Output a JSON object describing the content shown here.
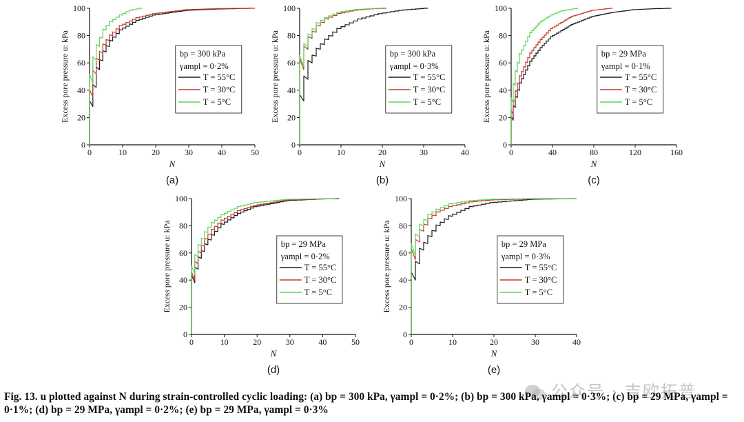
{
  "colors": {
    "T55": "#1a1a1a",
    "T30": "#c0392b",
    "T5": "#5fd35a"
  },
  "caption": {
    "fig_label": "Fig. 13.",
    "text": "u plotted against N during strain-controlled cyclic loading: (a) bp = 300 kPa, γampl = 0·2%; (b) bp = 300 kPa, γampl = 0·3%; (c) bp = 29 MPa, γampl = 0·1%; (d) bp = 29 MPa, γampl = 0·2%; (e) bp = 29 MPa, γampl = 0·3%"
  },
  "watermark": {
    "text": "公众号 · 吉欧拓普",
    "logo_icon": "wechat-logo-icon"
  },
  "chart_data": [
    {
      "id": "a",
      "panel_label": "(a)",
      "type": "line",
      "xlabel": "N",
      "ylabel": "Excess pore pressure u: kPa",
      "xlim": [
        0,
        50
      ],
      "ylim": [
        0,
        100
      ],
      "xticks": [
        "0",
        "10",
        "20",
        "30",
        "40",
        "50"
      ],
      "yticks": [
        "0",
        "20",
        "40",
        "60",
        "80",
        "100"
      ],
      "legend": {
        "bp": "bp = 300 kPa",
        "gamma": "γampl = 0·2%",
        "position": "right"
      },
      "series": [
        {
          "name": "T = 55°C",
          "color_key": "T55",
          "nmax": 49,
          "x": [
            0,
            1,
            2,
            3,
            5,
            7,
            10,
            15,
            20,
            30,
            40,
            49
          ],
          "y": [
            0,
            28,
            42,
            55,
            68,
            76,
            84,
            91,
            95,
            98.5,
            99.5,
            100
          ]
        },
        {
          "name": "T = 30°C",
          "color_key": "T30",
          "nmax": 50,
          "x": [
            0,
            1,
            2,
            3,
            5,
            7,
            10,
            15,
            20,
            30,
            40,
            50
          ],
          "y": [
            0,
            35,
            52,
            62,
            73,
            80,
            87,
            93,
            96,
            99,
            99.8,
            100
          ]
        },
        {
          "name": "T = 5°C",
          "color_key": "T5",
          "nmax": 16,
          "x": [
            0,
            1,
            2,
            3,
            5,
            7,
            10,
            13,
            16
          ],
          "y": [
            0,
            45,
            62,
            72,
            84,
            90,
            95,
            98.5,
            100
          ]
        }
      ]
    },
    {
      "id": "b",
      "panel_label": "(b)",
      "type": "line",
      "xlabel": "N",
      "ylabel": "Excess pore pressure u: kPa",
      "xlim": [
        0,
        40
      ],
      "ylim": [
        0,
        100
      ],
      "xticks": [
        "0",
        "10",
        "20",
        "30",
        "40"
      ],
      "yticks": [
        "0",
        "20",
        "40",
        "60",
        "80",
        "100"
      ],
      "legend": {
        "bp": "bp = 300 kPa",
        "gamma": "γampl = 0·3%",
        "position": "right"
      },
      "series": [
        {
          "name": "T = 55°C",
          "color_key": "T55",
          "nmax": 31,
          "x": [
            0,
            1,
            2,
            3,
            5,
            7,
            10,
            15,
            20,
            25,
            31
          ],
          "y": [
            0,
            32,
            48,
            60,
            70,
            77,
            85,
            92,
            96,
            98.5,
            100
          ]
        },
        {
          "name": "T = 30°C",
          "color_key": "T30",
          "nmax": 21,
          "x": [
            0,
            1,
            2,
            3,
            5,
            7,
            10,
            14,
            18,
            21
          ],
          "y": [
            0,
            55,
            70,
            78,
            87,
            92,
            96,
            98.5,
            99.6,
            100
          ]
        },
        {
          "name": "T = 5°C",
          "color_key": "T5",
          "nmax": 20,
          "x": [
            0,
            1,
            2,
            3,
            5,
            7,
            10,
            14,
            18,
            20
          ],
          "y": [
            0,
            57,
            72,
            80,
            89,
            93,
            97,
            99,
            99.8,
            100
          ]
        }
      ]
    },
    {
      "id": "c",
      "panel_label": "(c)",
      "type": "line",
      "xlabel": "N",
      "ylabel": "Excess pore pressure u: kPa",
      "xlim": [
        0,
        160
      ],
      "ylim": [
        0,
        100
      ],
      "xticks": [
        "0",
        "40",
        "80",
        "120",
        "160"
      ],
      "yticks": [
        "0",
        "20",
        "40",
        "60",
        "80",
        "100"
      ],
      "legend": {
        "bp": "bp = 29 MPa",
        "gamma": "γampl = 0·1%",
        "position": "right"
      },
      "series": [
        {
          "name": "T = 55°C",
          "color_key": "T55",
          "nmax": 155,
          "x": [
            0,
            2,
            5,
            10,
            20,
            30,
            40,
            60,
            80,
            100,
            120,
            140,
            155
          ],
          "y": [
            0,
            18,
            32,
            45,
            61,
            71,
            79,
            88,
            94,
            97,
            99,
            99.7,
            100
          ]
        },
        {
          "name": "T = 30°C",
          "color_key": "T30",
          "nmax": 98,
          "x": [
            0,
            2,
            5,
            10,
            20,
            30,
            40,
            60,
            80,
            98
          ],
          "y": [
            0,
            22,
            36,
            50,
            67,
            77,
            85,
            94,
            98.5,
            100
          ]
        },
        {
          "name": "T = 5°C",
          "color_key": "T5",
          "nmax": 65,
          "x": [
            0,
            2,
            5,
            10,
            20,
            30,
            40,
            50,
            65
          ],
          "y": [
            0,
            30,
            50,
            66,
            82,
            90,
            95,
            98,
            100
          ]
        }
      ]
    },
    {
      "id": "d",
      "panel_label": "(d)",
      "type": "line",
      "xlabel": "N",
      "ylabel": "Excess pore pressure u: kPa",
      "xlim": [
        0,
        50
      ],
      "ylim": [
        0,
        100
      ],
      "xticks": [
        "0",
        "10",
        "20",
        "30",
        "40",
        "50"
      ],
      "yticks": [
        "0",
        "20",
        "40",
        "60",
        "80",
        "100"
      ],
      "legend": {
        "bp": "bp = 29 MPa",
        "gamma": "γampl = 0·2%",
        "position": "right"
      },
      "series": [
        {
          "name": "T = 55°C",
          "color_key": "T55",
          "nmax": 45,
          "x": [
            0,
            1,
            2,
            3,
            5,
            7,
            10,
            15,
            20,
            30,
            40,
            45
          ],
          "y": [
            0,
            38,
            48,
            56,
            66,
            73,
            81,
            89,
            94,
            98.5,
            99.7,
            100
          ]
        },
        {
          "name": "T = 30°C",
          "color_key": "T30",
          "nmax": 45,
          "x": [
            0,
            1,
            2,
            3,
            5,
            7,
            10,
            15,
            20,
            30,
            40,
            45
          ],
          "y": [
            0,
            40,
            52,
            60,
            70,
            77,
            84,
            91,
            95,
            99,
            99.8,
            100
          ]
        },
        {
          "name": "T = 5°C",
          "color_key": "T5",
          "nmax": 44,
          "x": [
            0,
            1,
            2,
            3,
            5,
            7,
            10,
            15,
            20,
            30,
            44
          ],
          "y": [
            0,
            44,
            57,
            65,
            75,
            82,
            88,
            94,
            97,
            99.5,
            100
          ]
        }
      ]
    },
    {
      "id": "e",
      "panel_label": "(e)",
      "type": "line",
      "xlabel": "N",
      "ylabel": "Excess pore pressure u: kPa",
      "xlim": [
        0,
        40
      ],
      "ylim": [
        0,
        100
      ],
      "xticks": [
        "0",
        "10",
        "20",
        "30",
        "40"
      ],
      "yticks": [
        "0",
        "20",
        "40",
        "60",
        "80",
        "100"
      ],
      "legend": {
        "bp": "bp = 29 MPa",
        "gamma": "γampl = 0·3%",
        "position": "right"
      },
      "series": [
        {
          "name": "T = 55°C",
          "color_key": "T55",
          "nmax": 40,
          "x": [
            0,
            1,
            2,
            3,
            5,
            7,
            10,
            15,
            20,
            30,
            40
          ],
          "y": [
            0,
            40,
            52,
            62,
            72,
            80,
            87,
            94,
            97,
            99.5,
            100
          ]
        },
        {
          "name": "T = 30°C",
          "color_key": "T30",
          "nmax": 40,
          "x": [
            0,
            1,
            2,
            3,
            5,
            7,
            10,
            15,
            20,
            30,
            40
          ],
          "y": [
            0,
            55,
            68,
            76,
            85,
            90,
            94,
            97.5,
            99,
            99.8,
            100
          ]
        },
        {
          "name": "T = 5°C",
          "color_key": "T5",
          "nmax": 40,
          "x": [
            0,
            1,
            2,
            3,
            5,
            7,
            10,
            15,
            20,
            30,
            40
          ],
          "y": [
            0,
            58,
            72,
            80,
            88,
            92,
            96,
            98.5,
            99.5,
            100,
            100
          ]
        }
      ]
    }
  ]
}
